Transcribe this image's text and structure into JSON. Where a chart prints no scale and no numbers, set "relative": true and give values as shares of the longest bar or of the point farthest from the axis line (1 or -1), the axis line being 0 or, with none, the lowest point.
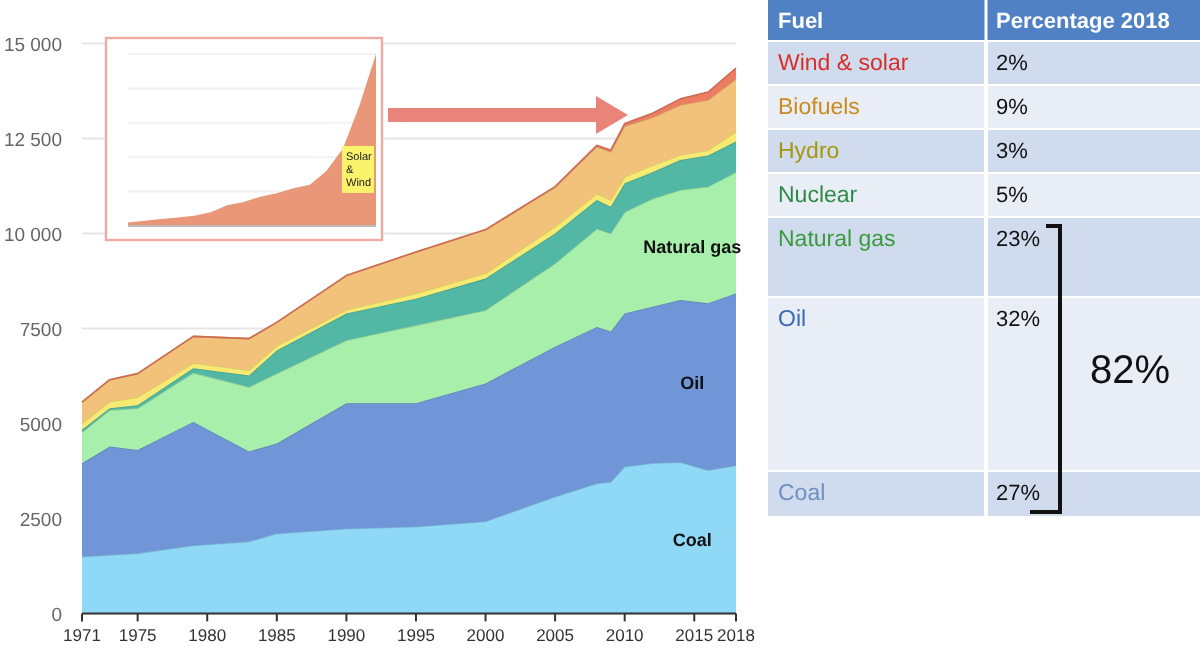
{
  "chart_data": [
    {
      "type": "area",
      "stacked": true,
      "x": [
        1971,
        1973,
        1975,
        1979,
        1983,
        1985,
        1990,
        1995,
        2000,
        2005,
        2008,
        2009,
        2010,
        2012,
        2014,
        2016,
        2018
      ],
      "xlim": [
        1971,
        2018
      ],
      "xticks": [
        1971,
        1975,
        1980,
        1985,
        1990,
        1995,
        2000,
        2005,
        2010,
        2015,
        2018
      ],
      "ylim": [
        0,
        15000
      ],
      "yticks": [
        0,
        2500,
        5000,
        7500,
        {
          "value": 10000,
          "label": "10 000"
        },
        {
          "value": 12500,
          "label": "12 500"
        },
        {
          "value": 15000,
          "label": "15 000"
        }
      ],
      "grid": "y",
      "legend": false,
      "series": [
        {
          "name": "Coal",
          "color": "#8fd9f7",
          "values": [
            1490,
            1540,
            1580,
            1790,
            1890,
            2100,
            2230,
            2280,
            2420,
            3070,
            3420,
            3460,
            3860,
            3950,
            3980,
            3770,
            3890
          ]
        },
        {
          "name": "Oil",
          "color": "#7196d8",
          "values": [
            2460,
            2850,
            2720,
            3250,
            2370,
            2370,
            3300,
            3250,
            3630,
            3950,
            4120,
            3960,
            4030,
            4120,
            4270,
            4390,
            4530
          ]
        },
        {
          "name": "Natural gas",
          "color": "#a8efab",
          "values": [
            820,
            960,
            1100,
            1290,
            1700,
            1840,
            1660,
            2050,
            1930,
            2190,
            2580,
            2580,
            2670,
            2840,
            2890,
            3070,
            3190
          ]
        },
        {
          "color": "#52b7a4",
          "values": [
            60,
            50,
            80,
            120,
            300,
            610,
            700,
            700,
            830,
            790,
            760,
            700,
            760,
            700,
            790,
            820,
            810
          ]
        },
        {
          "color": "#f6ea72",
          "values": [
            170,
            180,
            210,
            140,
            140,
            120,
            100,
            140,
            140,
            180,
            170,
            180,
            170,
            180,
            140,
            140,
            250
          ]
        },
        {
          "color": "#f3c27a",
          "values": [
            560,
            570,
            620,
            700,
            830,
            620,
            900,
            1090,
            1140,
            1030,
            1230,
            1260,
            1330,
            1260,
            1310,
            1320,
            1390
          ]
        },
        {
          "color": "#ec7d62",
          "values": [
            0,
            0,
            0,
            0,
            0,
            0,
            0,
            0,
            10,
            20,
            40,
            50,
            70,
            110,
            160,
            210,
            290
          ]
        }
      ]
    },
    {
      "type": "area",
      "relative": true,
      "categories": [
        null,
        null,
        null,
        null,
        null,
        null,
        null,
        null,
        null,
        null,
        null,
        null,
        null,
        null,
        null,
        null
      ],
      "series": [
        {
          "color": "#ea9679",
          "values": [
            0.02,
            0.03,
            0.04,
            0.05,
            0.06,
            0.08,
            0.12,
            0.14,
            0.17,
            0.19,
            0.22,
            0.24,
            0.32,
            0.45,
            0.7,
            1
          ]
        }
      ],
      "annotations": [
        "Solar & Wind"
      ]
    },
    {
      "type": "other",
      "categories": [
        "Wind & solar",
        "Biofuels",
        "Hydro",
        "Nuclear",
        "Natural gas",
        "Oil",
        "Coal"
      ],
      "value_labels": [
        "2%",
        "9%",
        "3%",
        "5%",
        "23%",
        "32%",
        "27%"
      ],
      "annotations": [
        "Fuel",
        "Percentage 2018",
        "82%"
      ]
    }
  ]
}
